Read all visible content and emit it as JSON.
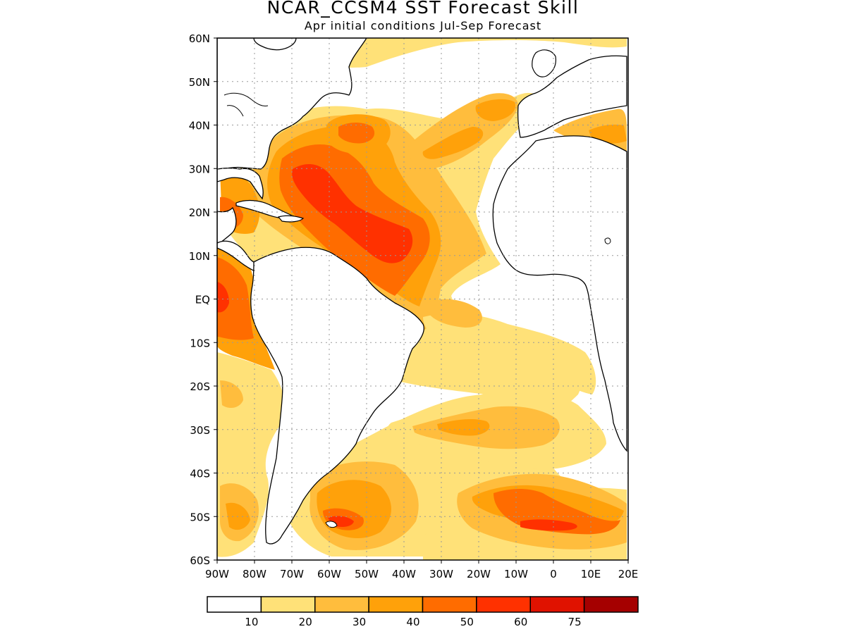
{
  "title": "NCAR_CCSM4 SST Forecast Skill",
  "subtitle": "Apr initial conditions  Jul-Sep Forecast",
  "map": {
    "lon_range": [
      -90,
      20
    ],
    "lat_range": [
      -60,
      60
    ],
    "grid": "dotted",
    "x_tick_labels": [
      "90W",
      "80W",
      "70W",
      "60W",
      "50W",
      "40W",
      "30W",
      "20W",
      "10W",
      "0",
      "10E",
      "20E"
    ],
    "y_tick_labels": [
      "60N",
      "50N",
      "40N",
      "30N",
      "20N",
      "10N",
      "EQ",
      "10S",
      "20S",
      "30S",
      "40S",
      "50S",
      "60S"
    ]
  },
  "colorbar": {
    "labels": [
      "10",
      "20",
      "30",
      "40",
      "50",
      "60",
      "75"
    ],
    "colors": [
      "#ffffff",
      "#ffe178",
      "#ffbd3d",
      "#ffa10a",
      "#ff6c00",
      "#ff3100",
      "#e01200",
      "#a50000"
    ]
  },
  "colors": {
    "l1": "#ffe178",
    "l2": "#ffbd3d",
    "l3": "#ffa10a",
    "l4": "#ff6c00",
    "l5": "#ff3100",
    "coast": "#000000"
  }
}
